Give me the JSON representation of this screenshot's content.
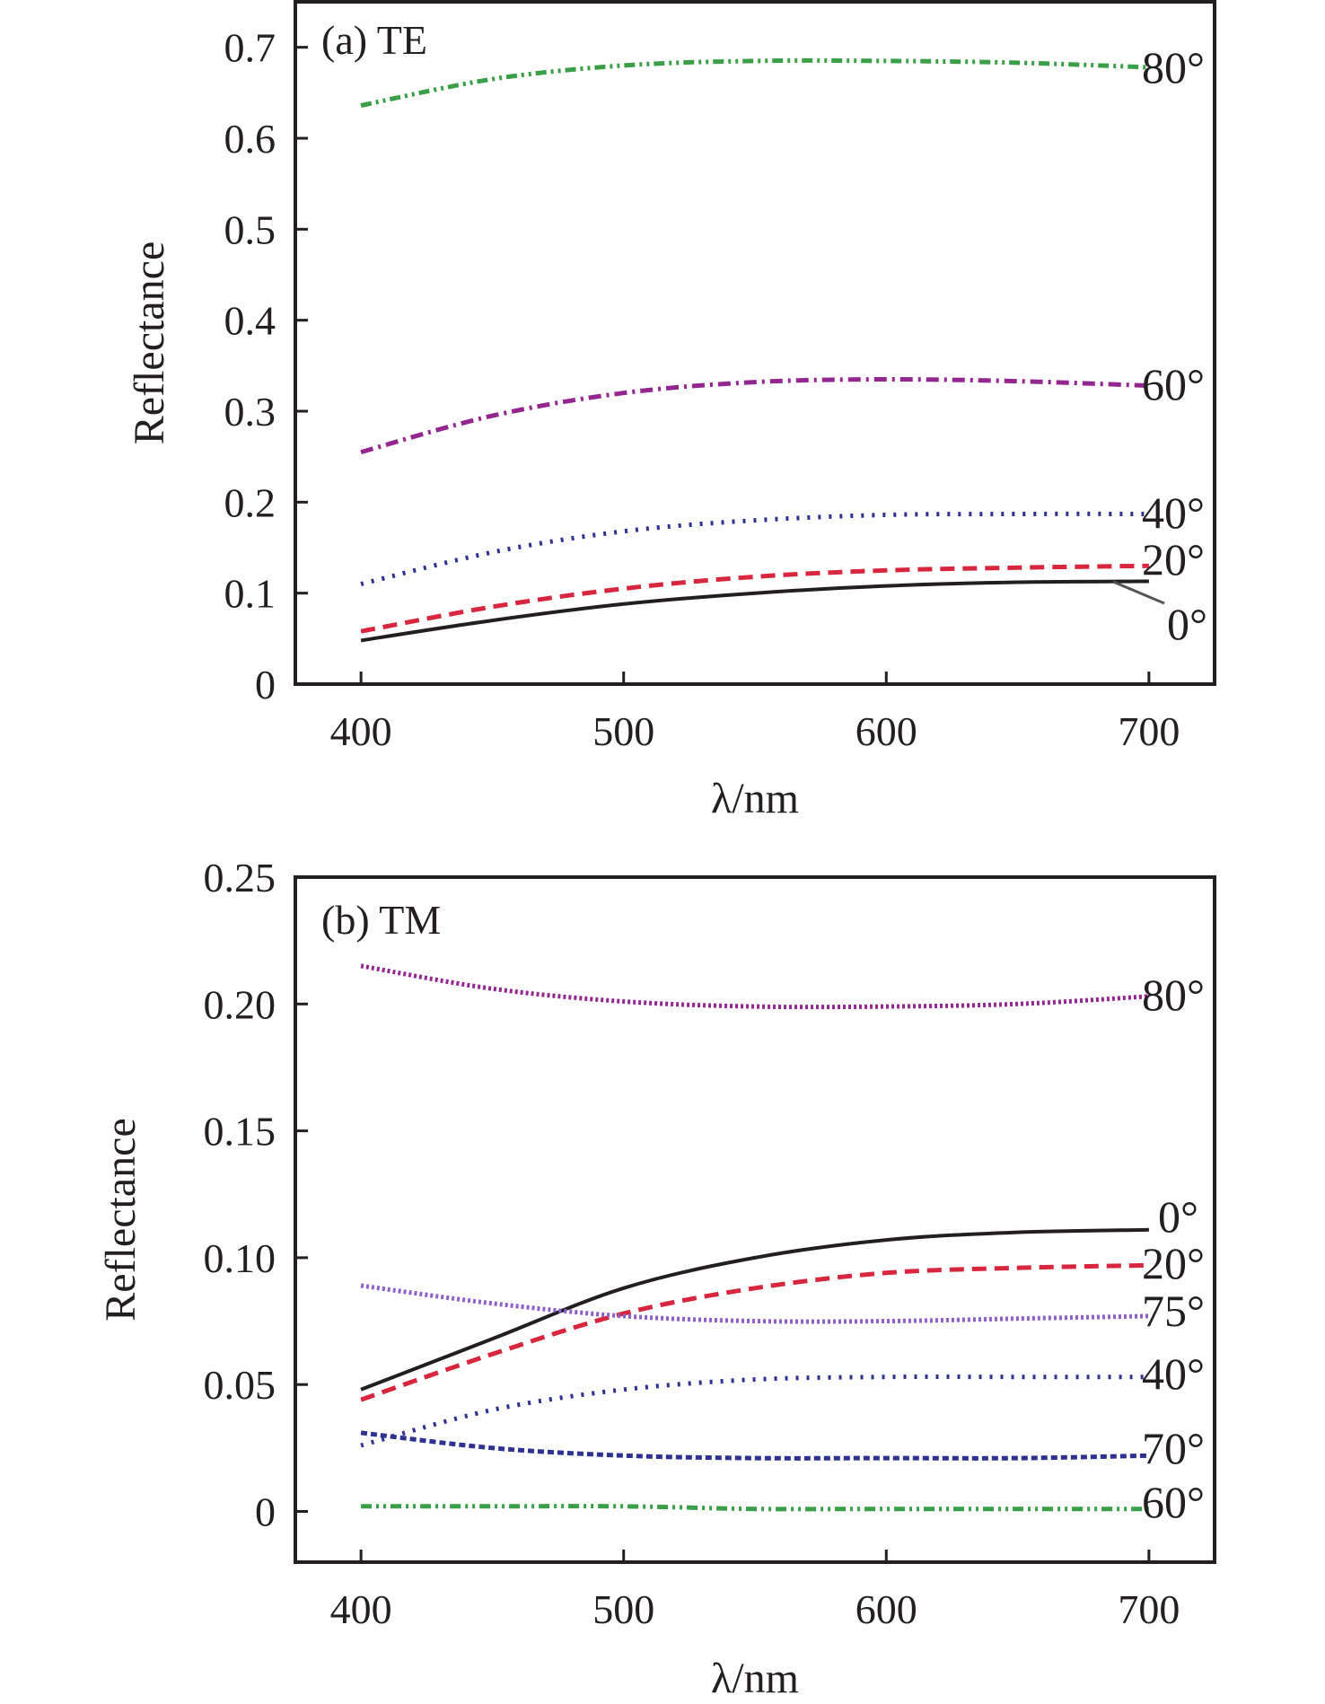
{
  "chart_data": [
    {
      "type": "line",
      "title": "(a) TE",
      "xlabel": "λ/nm",
      "ylabel": "Reflectance",
      "xlim": [
        375,
        725
      ],
      "ylim": [
        0,
        0.75
      ],
      "xticks": [
        400,
        500,
        600,
        700
      ],
      "xtick_labels": [
        "400",
        "500",
        "600",
        "700"
      ],
      "yticks": [
        0,
        0.1,
        0.2,
        0.3,
        0.4,
        0.5,
        0.6,
        0.7
      ],
      "ytick_labels": [
        "0",
        "0.1",
        "0.2",
        "0.3",
        "0.4",
        "0.5",
        "0.6",
        "0.7"
      ],
      "grid": false,
      "legend": "inline labels at right end of each curve",
      "x": [
        400,
        450,
        500,
        550,
        600,
        650,
        700
      ],
      "series": [
        {
          "name": "0°",
          "label": "0°",
          "color": "#231f20",
          "style": "solid",
          "values": [
            0.048,
            0.07,
            0.088,
            0.1,
            0.108,
            0.112,
            0.113
          ]
        },
        {
          "name": "20°",
          "label": "20°",
          "color": "#d7263d",
          "style": "dashed",
          "values": [
            0.058,
            0.085,
            0.105,
            0.118,
            0.125,
            0.128,
            0.13
          ]
        },
        {
          "name": "40°",
          "label": "40°",
          "color": "#2e3192",
          "style": "dotted",
          "values": [
            0.11,
            0.145,
            0.168,
            0.18,
            0.186,
            0.187,
            0.187
          ]
        },
        {
          "name": "60°",
          "label": "60°",
          "color": "#93278f",
          "style": "dashdot",
          "values": [
            0.255,
            0.295,
            0.32,
            0.332,
            0.335,
            0.333,
            0.328
          ]
        },
        {
          "name": "80°",
          "label": "80°",
          "color": "#39a047",
          "style": "dashdotdot",
          "values": [
            0.636,
            0.665,
            0.68,
            0.685,
            0.685,
            0.683,
            0.678
          ]
        }
      ]
    },
    {
      "type": "line",
      "title": "(b) TM",
      "xlabel": "λ/nm",
      "ylabel": "Reflectance",
      "xlim": [
        375,
        725
      ],
      "ylim": [
        -0.02,
        0.25
      ],
      "xticks": [
        400,
        500,
        600,
        700
      ],
      "xtick_labels": [
        "400",
        "500",
        "600",
        "700"
      ],
      "yticks": [
        0,
        0.05,
        0.1,
        0.15,
        0.2,
        0.25
      ],
      "ytick_labels": [
        "0",
        "0.05",
        "0.10",
        "0.15",
        "0.20",
        "0.25"
      ],
      "grid": false,
      "legend": "inline labels at right end of each curve",
      "x": [
        400,
        450,
        500,
        550,
        600,
        650,
        700
      ],
      "series": [
        {
          "name": "0°",
          "label": "0°",
          "color": "#231f20",
          "style": "solid",
          "values": [
            0.048,
            0.068,
            0.088,
            0.1,
            0.107,
            0.11,
            0.111
          ]
        },
        {
          "name": "20°",
          "label": "20°",
          "color": "#d7263d",
          "style": "dashed",
          "values": [
            0.044,
            0.062,
            0.078,
            0.088,
            0.094,
            0.096,
            0.097
          ]
        },
        {
          "name": "75°",
          "label": "75°",
          "color": "#8e5fc9",
          "style": "dense-dotted",
          "values": [
            0.089,
            0.082,
            0.077,
            0.075,
            0.075,
            0.076,
            0.077
          ]
        },
        {
          "name": "40°",
          "label": "40°",
          "color": "#2e3192",
          "style": "dotted",
          "values": [
            0.026,
            0.04,
            0.048,
            0.052,
            0.053,
            0.053,
            0.053
          ]
        },
        {
          "name": "70°",
          "label": "70°",
          "color": "#2e3192",
          "style": "dense-dashed",
          "values": [
            0.031,
            0.025,
            0.022,
            0.021,
            0.021,
            0.021,
            0.022
          ]
        },
        {
          "name": "60°",
          "label": "60°",
          "color": "#39a047",
          "style": "dashdotdot",
          "values": [
            0.002,
            0.002,
            0.002,
            0.001,
            0.001,
            0.001,
            0.001
          ]
        },
        {
          "name": "80°",
          "label": "80°",
          "color": "#93278f",
          "style": "dense-dotted",
          "values": [
            0.215,
            0.206,
            0.201,
            0.199,
            0.199,
            0.2,
            0.203
          ]
        }
      ]
    }
  ]
}
